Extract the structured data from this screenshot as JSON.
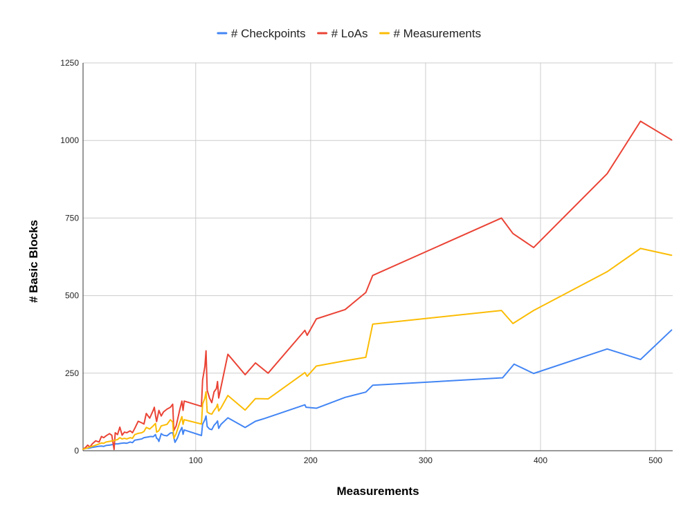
{
  "chart_data": {
    "type": "line",
    "xlabel": "Measurements",
    "ylabel": "# Basic Blocks",
    "xlim": [
      2,
      515
    ],
    "ylim": [
      0,
      1250
    ],
    "xticks": [
      100,
      200,
      300,
      400,
      500
    ],
    "yticks": [
      0,
      250,
      500,
      750,
      1000,
      1250
    ],
    "xtick_labels": [
      "100",
      "200",
      "300",
      "400",
      "500"
    ],
    "ytick_labels": [
      "0",
      "250",
      "500",
      "750",
      "1000",
      "1250"
    ],
    "grid": true,
    "legend_position": "top",
    "series": [
      {
        "name": "# Checkpoints",
        "color": "#4285f4",
        "points": [
          [
            2,
            5
          ],
          [
            5,
            8
          ],
          [
            7,
            8
          ],
          [
            9,
            10
          ],
          [
            12,
            12
          ],
          [
            15,
            14
          ],
          [
            18,
            15
          ],
          [
            20,
            14
          ],
          [
            22,
            17
          ],
          [
            25,
            18
          ],
          [
            28,
            20
          ],
          [
            30,
            22
          ],
          [
            32,
            22
          ],
          [
            35,
            24
          ],
          [
            38,
            25
          ],
          [
            40,
            24
          ],
          [
            43,
            28
          ],
          [
            45,
            26
          ],
          [
            47,
            34
          ],
          [
            50,
            36
          ],
          [
            53,
            38
          ],
          [
            55,
            42
          ],
          [
            58,
            44
          ],
          [
            61,
            46
          ],
          [
            63,
            45
          ],
          [
            65,
            52
          ],
          [
            66,
            40
          ],
          [
            67,
            38
          ],
          [
            68,
            30
          ],
          [
            70,
            55
          ],
          [
            72,
            50
          ],
          [
            75,
            48
          ],
          [
            78,
            57
          ],
          [
            80,
            58
          ],
          [
            82,
            27
          ],
          [
            84,
            40
          ],
          [
            86,
            60
          ],
          [
            88,
            75
          ],
          [
            89,
            53
          ],
          [
            90,
            67
          ],
          [
            105,
            49
          ],
          [
            106,
            85
          ],
          [
            108,
            100
          ],
          [
            109,
            112
          ],
          [
            110,
            78
          ],
          [
            112,
            70
          ],
          [
            114,
            68
          ],
          [
            116,
            82
          ],
          [
            118,
            90
          ],
          [
            119,
            96
          ],
          [
            120,
            72
          ],
          [
            122,
            85
          ],
          [
            128,
            106
          ],
          [
            143,
            75
          ],
          [
            152,
            95
          ],
          [
            160,
            104
          ],
          [
            195,
            148
          ],
          [
            196,
            140
          ],
          [
            205,
            137
          ],
          [
            230,
            172
          ],
          [
            248,
            189
          ],
          [
            254,
            211
          ],
          [
            367,
            235
          ],
          [
            377,
            279
          ],
          [
            394,
            249
          ],
          [
            458,
            328
          ],
          [
            487,
            294
          ],
          [
            514,
            389
          ]
        ]
      },
      {
        "name": "# LoAs",
        "color": "#ea4335",
        "points": [
          [
            2,
            5
          ],
          [
            4,
            10
          ],
          [
            6,
            18
          ],
          [
            8,
            12
          ],
          [
            10,
            22
          ],
          [
            13,
            32
          ],
          [
            16,
            28
          ],
          [
            18,
            46
          ],
          [
            20,
            42
          ],
          [
            22,
            48
          ],
          [
            25,
            55
          ],
          [
            27,
            50
          ],
          [
            29,
            4
          ],
          [
            30,
            58
          ],
          [
            32,
            52
          ],
          [
            34,
            76
          ],
          [
            36,
            50
          ],
          [
            38,
            60
          ],
          [
            40,
            58
          ],
          [
            43,
            64
          ],
          [
            45,
            58
          ],
          [
            47,
            72
          ],
          [
            50,
            95
          ],
          [
            53,
            90
          ],
          [
            55,
            86
          ],
          [
            57,
            120
          ],
          [
            60,
            105
          ],
          [
            63,
            130
          ],
          [
            64,
            140
          ],
          [
            65,
            115
          ],
          [
            66,
            94
          ],
          [
            68,
            130
          ],
          [
            70,
            112
          ],
          [
            72,
            125
          ],
          [
            75,
            134
          ],
          [
            78,
            140
          ],
          [
            80,
            150
          ],
          [
            81,
            65
          ],
          [
            83,
            80
          ],
          [
            86,
            130
          ],
          [
            88,
            160
          ],
          [
            89,
            130
          ],
          [
            90,
            160
          ],
          [
            105,
            143
          ],
          [
            106,
            228
          ],
          [
            108,
            272
          ],
          [
            109,
            322
          ],
          [
            110,
            195
          ],
          [
            112,
            170
          ],
          [
            114,
            155
          ],
          [
            116,
            190
          ],
          [
            118,
            200
          ],
          [
            119,
            223
          ],
          [
            120,
            170
          ],
          [
            122,
            205
          ],
          [
            128,
            311
          ],
          [
            143,
            245
          ],
          [
            152,
            283
          ],
          [
            163,
            250
          ],
          [
            195,
            388
          ],
          [
            197,
            372
          ],
          [
            205,
            425
          ],
          [
            230,
            455
          ],
          [
            248,
            510
          ],
          [
            254,
            565
          ],
          [
            366,
            750
          ],
          [
            376,
            700
          ],
          [
            394,
            655
          ],
          [
            458,
            893
          ],
          [
            487,
            1062
          ],
          [
            514,
            1002
          ]
        ]
      },
      {
        "name": "# Measurements",
        "color": "#fbbc04",
        "points": [
          [
            2,
            5
          ],
          [
            5,
            8
          ],
          [
            8,
            12
          ],
          [
            10,
            14
          ],
          [
            13,
            18
          ],
          [
            16,
            22
          ],
          [
            18,
            25
          ],
          [
            20,
            24
          ],
          [
            22,
            28
          ],
          [
            25,
            30
          ],
          [
            28,
            32
          ],
          [
            30,
            34
          ],
          [
            32,
            36
          ],
          [
            34,
            42
          ],
          [
            36,
            38
          ],
          [
            38,
            40
          ],
          [
            40,
            38
          ],
          [
            43,
            42
          ],
          [
            45,
            40
          ],
          [
            47,
            52
          ],
          [
            50,
            56
          ],
          [
            53,
            58
          ],
          [
            55,
            62
          ],
          [
            57,
            75
          ],
          [
            60,
            70
          ],
          [
            63,
            80
          ],
          [
            65,
            88
          ],
          [
            66,
            60
          ],
          [
            67,
            62
          ],
          [
            68,
            65
          ],
          [
            70,
            80
          ],
          [
            72,
            82
          ],
          [
            75,
            85
          ],
          [
            78,
            100
          ],
          [
            80,
            92
          ],
          [
            81,
            40
          ],
          [
            83,
            55
          ],
          [
            86,
            90
          ],
          [
            88,
            110
          ],
          [
            89,
            85
          ],
          [
            90,
            100
          ],
          [
            105,
            86
          ],
          [
            106,
            150
          ],
          [
            108,
            170
          ],
          [
            109,
            190
          ],
          [
            110,
            125
          ],
          [
            112,
            120
          ],
          [
            114,
            118
          ],
          [
            116,
            130
          ],
          [
            118,
            140
          ],
          [
            119,
            150
          ],
          [
            120,
            128
          ],
          [
            122,
            138
          ],
          [
            128,
            178
          ],
          [
            143,
            131
          ],
          [
            152,
            168
          ],
          [
            163,
            167
          ],
          [
            195,
            252
          ],
          [
            197,
            240
          ],
          [
            205,
            273
          ],
          [
            230,
            290
          ],
          [
            248,
            301
          ],
          [
            254,
            408
          ],
          [
            366,
            452
          ],
          [
            376,
            410
          ],
          [
            394,
            452
          ],
          [
            458,
            577
          ],
          [
            487,
            652
          ],
          [
            514,
            630
          ]
        ]
      }
    ]
  }
}
